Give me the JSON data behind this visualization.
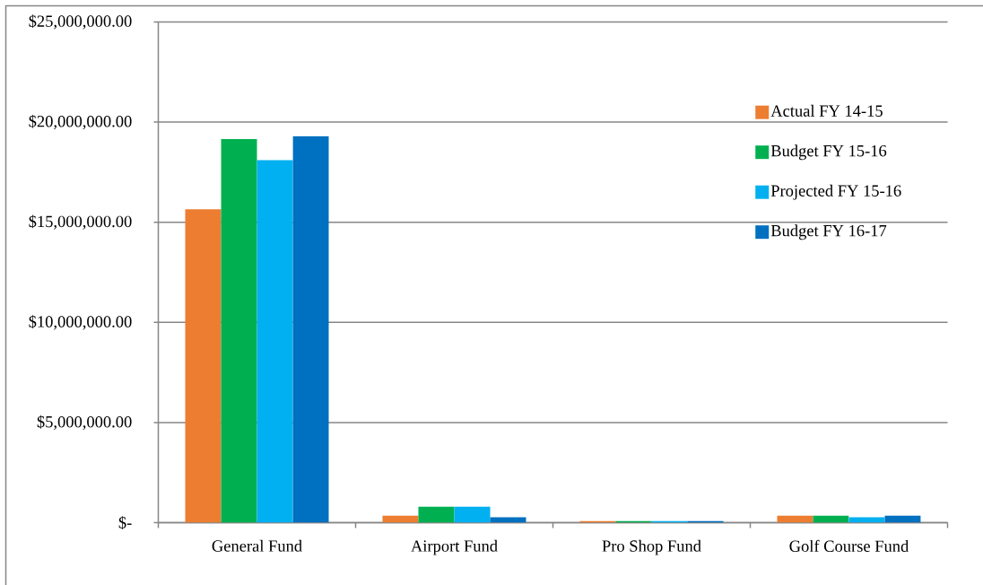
{
  "chart_data": {
    "type": "bar",
    "categories": [
      "General Fund",
      "Airport Fund",
      "Pro Shop Fund",
      "Golf Course Fund"
    ],
    "series": [
      {
        "name": "Actual FY 14-15",
        "color": "#ed7d31",
        "values": [
          15650000,
          350000,
          80000,
          350000
        ]
      },
      {
        "name": "Budget FY 15-16",
        "color": "#00b050",
        "values": [
          19150000,
          800000,
          80000,
          350000
        ]
      },
      {
        "name": "Projected FY 15-16",
        "color": "#00b0f0",
        "values": [
          18100000,
          800000,
          80000,
          270000
        ]
      },
      {
        "name": "Budget FY 16-17",
        "color": "#0070c0",
        "values": [
          19300000,
          270000,
          80000,
          350000
        ]
      }
    ],
    "ylim": [
      0,
      25000000
    ],
    "yticks": [
      {
        "value": 0,
        "label": "$-"
      },
      {
        "value": 5000000,
        "label": "$5,000,000.00"
      },
      {
        "value": 10000000,
        "label": "$10,000,000.00"
      },
      {
        "value": 15000000,
        "label": "$15,000,000.00"
      },
      {
        "value": 20000000,
        "label": "$20,000,000.00"
      },
      {
        "value": 25000000,
        "label": "$25,000,000.00"
      }
    ],
    "grid": "y",
    "legend": "top right"
  }
}
